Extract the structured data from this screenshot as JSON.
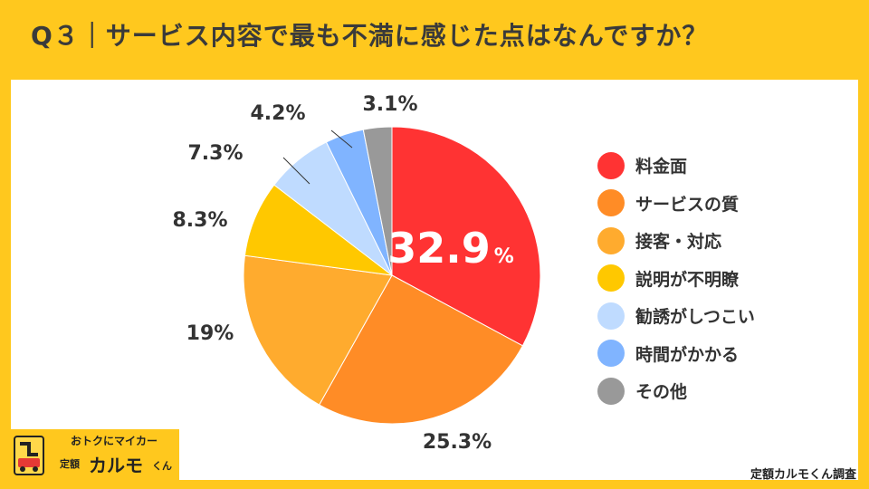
{
  "title": "Q３｜サービス内容で最も不満に感じた点はなんですか？",
  "credit": "定額カルモくん調査",
  "logo": {
    "tagline": "おトクにマイカー",
    "sub": "定額",
    "brand": "カルモ",
    "suffix": "くん"
  },
  "chart_data": {
    "type": "pie",
    "categories": [
      "料金面",
      "サービスの質",
      "接客・対応",
      "説明が不明瞭",
      "勧誘がしつこい",
      "時間がかかる",
      "その他"
    ],
    "values": [
      32.9,
      25.3,
      19,
      8.3,
      7.3,
      4.2,
      3.1
    ],
    "value_labels": [
      "32.9",
      "25.3%",
      "19%",
      "8.3%",
      "7.3%",
      "4.2%",
      "3.1%"
    ],
    "highlight_unit": "%",
    "colors": [
      "#FF3333",
      "#FF8C26",
      "#FFAB2E",
      "#FFC800",
      "#BFDBFF",
      "#80B4FF",
      "#999999"
    ],
    "legend_position": "right",
    "start_angle": "12 o'clock",
    "direction": "clockwise"
  }
}
